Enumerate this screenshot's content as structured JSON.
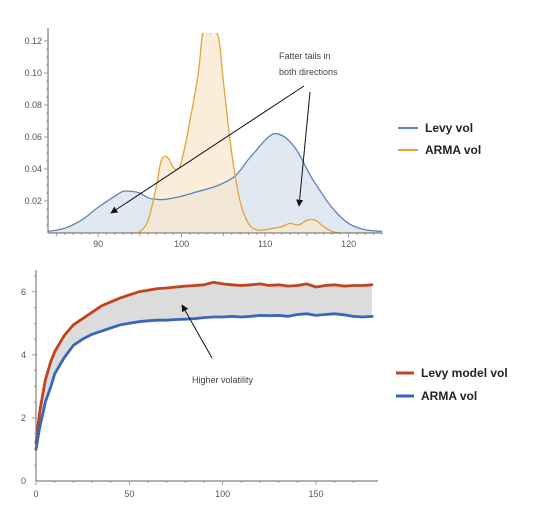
{
  "chart_data": [
    {
      "type": "area",
      "xlim": [
        84,
        124
      ],
      "ylim": [
        0,
        0.125
      ],
      "xticks": [
        "90",
        "100",
        "110",
        "120"
      ],
      "yticks": [
        "0.02",
        "0.04",
        "0.06",
        "0.08",
        "0.10",
        "0.12"
      ],
      "grid": false,
      "legend_position": "right",
      "annotation": [
        "Fatter tails in",
        "both directions"
      ],
      "series": [
        {
          "name": "Levy vol",
          "color": "#5b84b8",
          "fill": "#dde4ee",
          "x": [
            84,
            86,
            88,
            90,
            92,
            93,
            94,
            95,
            96,
            97,
            98,
            100,
            102,
            104,
            106,
            107,
            108,
            109,
            110,
            111,
            112,
            113,
            114,
            115,
            116,
            118,
            120,
            122,
            124
          ],
          "y": [
            0.001,
            0.003,
            0.008,
            0.016,
            0.023,
            0.026,
            0.026,
            0.025,
            0.022,
            0.021,
            0.021,
            0.023,
            0.026,
            0.029,
            0.034,
            0.039,
            0.046,
            0.052,
            0.058,
            0.062,
            0.061,
            0.057,
            0.05,
            0.04,
            0.031,
            0.016,
            0.006,
            0.002,
            0.001
          ]
        },
        {
          "name": "ARMA vol",
          "color": "#e2a43a",
          "fill": "#f8e8cf",
          "x": [
            84,
            94,
            95,
            96,
            97,
            97.5,
            98,
            98.5,
            99,
            99.5,
            100,
            101,
            102,
            102.5,
            103,
            103.5,
            104,
            104.5,
            105,
            106,
            107,
            108,
            109,
            110,
            111,
            112,
            113,
            114,
            115,
            116,
            117,
            118,
            119,
            120,
            124
          ],
          "y": [
            0,
            0,
            0.001,
            0.008,
            0.03,
            0.044,
            0.048,
            0.046,
            0.041,
            0.04,
            0.045,
            0.07,
            0.1,
            0.124,
            0.126,
            0.125,
            0.126,
            0.12,
            0.095,
            0.05,
            0.02,
            0.006,
            0.002,
            0.002,
            0.003,
            0.004,
            0.006,
            0.005,
            0.008,
            0.008,
            0.004,
            0.001,
            0,
            0,
            0
          ]
        }
      ]
    },
    {
      "type": "line",
      "xlim": [
        0,
        180
      ],
      "ylim": [
        0,
        6.5
      ],
      "xticks": [
        "0",
        "50",
        "100",
        "150"
      ],
      "yticks": [
        "0",
        "2",
        "4",
        "6"
      ],
      "grid": false,
      "legend_position": "right",
      "annotation": "Higher volatility",
      "band_fill": "#dcdcdc",
      "series": [
        {
          "name": "Levy model vol",
          "color": "#c0441d",
          "x": [
            0,
            2,
            5,
            8,
            10,
            15,
            20,
            25,
            30,
            35,
            40,
            45,
            50,
            55,
            60,
            65,
            70,
            75,
            80,
            85,
            90,
            95,
            100,
            105,
            110,
            115,
            120,
            125,
            130,
            135,
            140,
            145,
            150,
            155,
            160,
            165,
            170,
            175,
            180
          ],
          "y": [
            1.2,
            2.2,
            3.2,
            3.8,
            4.1,
            4.6,
            4.95,
            5.15,
            5.35,
            5.55,
            5.68,
            5.8,
            5.9,
            6.0,
            6.05,
            6.1,
            6.12,
            6.15,
            6.18,
            6.2,
            6.22,
            6.3,
            6.25,
            6.22,
            6.2,
            6.22,
            6.25,
            6.2,
            6.22,
            6.18,
            6.2,
            6.25,
            6.15,
            6.2,
            6.22,
            6.18,
            6.2,
            6.2,
            6.22
          ]
        },
        {
          "name": "ARMA vol",
          "color": "#3866bf",
          "x": [
            0,
            2,
            5,
            8,
            10,
            15,
            20,
            25,
            30,
            35,
            40,
            45,
            50,
            55,
            60,
            65,
            70,
            75,
            80,
            85,
            90,
            95,
            100,
            105,
            110,
            115,
            120,
            125,
            130,
            135,
            140,
            145,
            150,
            155,
            160,
            165,
            170,
            175,
            180
          ],
          "y": [
            1.0,
            1.7,
            2.5,
            3.0,
            3.4,
            3.9,
            4.3,
            4.5,
            4.65,
            4.75,
            4.85,
            4.95,
            5.0,
            5.05,
            5.08,
            5.1,
            5.1,
            5.12,
            5.13,
            5.15,
            5.18,
            5.2,
            5.2,
            5.22,
            5.2,
            5.22,
            5.25,
            5.24,
            5.25,
            5.22,
            5.28,
            5.3,
            5.25,
            5.28,
            5.3,
            5.27,
            5.22,
            5.2,
            5.22
          ]
        }
      ]
    }
  ]
}
